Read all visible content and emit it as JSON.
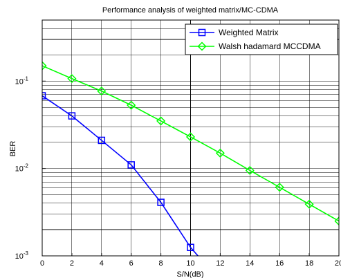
{
  "chart_data": {
    "type": "line",
    "title": "Performance analysis of weighted matrix/MC-CDMA",
    "xlabel": "S/N(dB)",
    "ylabel": "BER",
    "xlim": [
      0,
      20
    ],
    "ylim": [
      0.001,
      0.5
    ],
    "yscale": "log",
    "grid": true,
    "legend_position": "top-right",
    "x_ticks": [
      0,
      2,
      4,
      6,
      8,
      10,
      12,
      14,
      16,
      18,
      20
    ],
    "y_tick_labels": [
      {
        "base": "10",
        "exp": "-3",
        "value": 0.001
      },
      {
        "base": "10",
        "exp": "-2",
        "value": 0.01
      },
      {
        "base": "10",
        "exp": "-1",
        "value": 0.1
      }
    ],
    "series": [
      {
        "name": "Weighted Matrix",
        "color": "#0000ff",
        "marker": "square",
        "x": [
          0,
          2,
          4,
          6,
          8,
          10,
          11
        ],
        "y": [
          0.068,
          0.04,
          0.021,
          0.011,
          0.0041,
          0.00125,
          0.0008
        ]
      },
      {
        "name": "Walsh hadamard MCCDMA",
        "color": "#00ff00",
        "marker": "diamond",
        "x": [
          0,
          2,
          4,
          6,
          8,
          10,
          12,
          14,
          16,
          18,
          20
        ],
        "y": [
          0.15,
          0.107,
          0.077,
          0.053,
          0.035,
          0.023,
          0.015,
          0.0095,
          0.0061,
          0.0039,
          0.0025
        ]
      }
    ]
  }
}
